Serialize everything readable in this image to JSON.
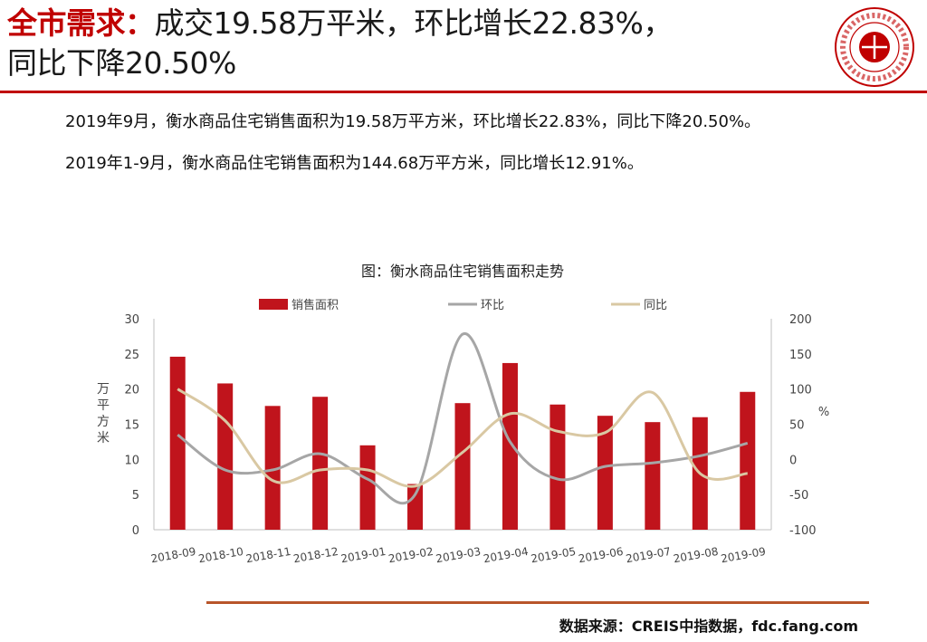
{
  "header": {
    "title_accent": "全市需求：",
    "title_rest": "成交19.58万平米，环比增长22.83%，",
    "title_line2": "同比下降20.50%"
  },
  "logo": {
    "icon": "china-index-academy-seal"
  },
  "body": {
    "para1": "2019年9月，衡水商品住宅销售面积为19.58万平方米，环比增长22.83%，同比下降20.50%。",
    "para2": "2019年1-9月，衡水商品住宅销售面积为144.68万平方米，同比增长12.91%。"
  },
  "footer": {
    "source": "数据来源：CREIS中指数据，fdc.fang.com"
  },
  "colors": {
    "accent": "#c00000",
    "bar": "#c0141c",
    "mom": "#a6a6a6",
    "yoy": "#d9c8a3",
    "footer_rule": "#b8552a"
  },
  "chart_data": {
    "type": "bar",
    "title": "图：衡水商品住宅销售面积走势",
    "categories": [
      "2018-09",
      "2018-10",
      "2018-11",
      "2018-12",
      "2019-01",
      "2019-02",
      "2019-03",
      "2019-04",
      "2019-05",
      "2019-06",
      "2019-07",
      "2019-08",
      "2019-09"
    ],
    "series": [
      {
        "name": "销售面积",
        "type": "bar",
        "axis": "left",
        "color": "#c0141c",
        "values": [
          24.6,
          20.8,
          17.6,
          18.9,
          12.0,
          6.5,
          18.0,
          23.7,
          17.8,
          16.2,
          15.3,
          16.0,
          19.6
        ]
      },
      {
        "name": "环比",
        "type": "line",
        "axis": "right",
        "color": "#a6a6a6",
        "values": [
          35,
          -15,
          -15,
          8,
          -28,
          -50,
          178,
          25,
          -28,
          -10,
          -5,
          5,
          23
        ]
      },
      {
        "name": "同比",
        "type": "line",
        "axis": "right",
        "color": "#d9c8a3",
        "values": [
          100,
          55,
          -30,
          -15,
          -15,
          -38,
          10,
          65,
          40,
          38,
          95,
          -20,
          -20
        ]
      }
    ],
    "ylabel": "万平方米",
    "ylim": [
      0,
      30
    ],
    "yticks": [
      0,
      5,
      10,
      15,
      20,
      25,
      30
    ],
    "y2label": "%",
    "y2lim": [
      -100,
      200
    ],
    "y2ticks": [
      -100,
      -50,
      0,
      50,
      100,
      150,
      200
    ],
    "legend_position": "top",
    "grid": false
  }
}
